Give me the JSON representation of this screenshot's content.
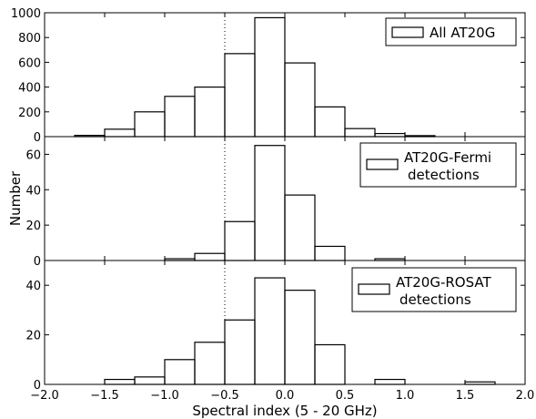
{
  "chart_data": [
    {
      "type": "histogram",
      "legend": [
        "All AT20G"
      ],
      "bin_edges": [
        -1.75,
        -1.5,
        -1.25,
        -1.0,
        -0.75,
        -0.5,
        -0.25,
        0.0,
        0.25,
        0.5,
        0.75,
        1.0,
        1.25
      ],
      "counts": [
        10,
        60,
        200,
        325,
        400,
        670,
        960,
        595,
        240,
        65,
        25,
        8
      ],
      "ylim": [
        0,
        1000
      ],
      "yticks": [
        "0",
        "200",
        "400",
        "600",
        "800",
        "1000"
      ]
    },
    {
      "type": "histogram",
      "legend": [
        "AT20G-Fermi",
        "detections"
      ],
      "bin_edges": [
        -1.0,
        -0.75,
        -0.5,
        -0.25,
        0.0,
        0.25,
        0.5,
        0.75,
        1.0
      ],
      "counts": [
        1,
        4,
        22,
        65,
        37,
        8,
        0,
        1
      ],
      "ylim": [
        0,
        70
      ],
      "yticks": [
        "0",
        "20",
        "40",
        "60"
      ]
    },
    {
      "type": "histogram",
      "legend": [
        "AT20G-ROSAT",
        "detections"
      ],
      "bin_edges": [
        -1.5,
        -1.25,
        -1.0,
        -0.75,
        -0.5,
        -0.25,
        0.0,
        0.25,
        0.5,
        0.75,
        1.0,
        1.25,
        1.5,
        1.75
      ],
      "counts": [
        2,
        3,
        10,
        17,
        26,
        43,
        38,
        16,
        0,
        2,
        0,
        0,
        1
      ],
      "ylim": [
        0,
        50
      ],
      "yticks": [
        "0",
        "20",
        "40"
      ]
    }
  ],
  "shared": {
    "xlabel": "Spectral index (5 - 20 GHz)",
    "ylabel": "Number",
    "xlim": [
      -2.0,
      2.0
    ],
    "xticks": [
      "−2.0",
      "−1.5",
      "−1.0",
      "−0.5",
      "0.0",
      "0.5",
      "1.0",
      "1.5",
      "2.0"
    ],
    "reference_line_x": -0.5
  }
}
